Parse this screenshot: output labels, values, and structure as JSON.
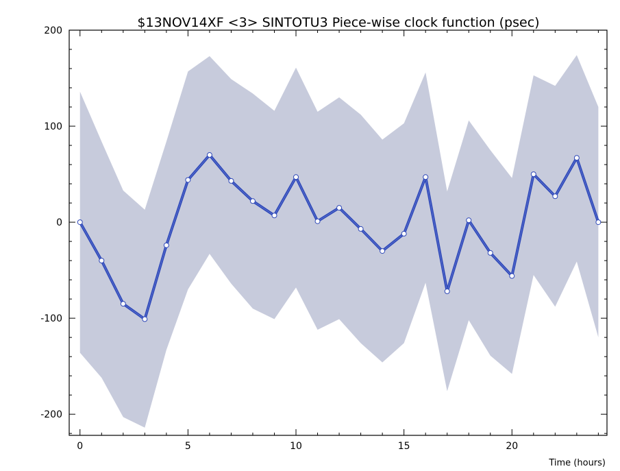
{
  "chart_data": {
    "type": "line",
    "title": "$13NOV14XF <3>  SINTOTU3  Piece-wise clock function (psec)",
    "xlabel": "Time (hours)",
    "ylabel": "",
    "xlim": [
      -0.5,
      24.4
    ],
    "ylim": [
      -222,
      200
    ],
    "xticks": [
      0,
      5,
      10,
      15,
      20
    ],
    "yticks": [
      -200,
      -100,
      0,
      100,
      200
    ],
    "x": [
      0,
      1,
      2,
      3,
      4,
      5,
      6,
      7,
      8,
      9,
      10,
      11,
      12,
      13,
      14,
      15,
      16,
      17,
      18,
      19,
      20,
      21,
      22,
      23,
      24
    ],
    "series": [
      {
        "values": [
          0,
          -40,
          -85,
          -101,
          -24,
          44,
          70,
          43,
          22,
          7,
          47,
          1,
          15,
          -7,
          -30,
          -12,
          47,
          -72,
          2,
          -32,
          -56,
          50,
          27,
          67,
          0
        ],
        "upper": [
          136,
          84,
          33,
          13,
          84,
          157,
          173,
          149,
          134,
          116,
          161,
          115,
          130,
          112,
          86,
          103,
          156,
          32,
          106,
          75,
          46,
          153,
          142,
          174,
          120
        ],
        "lower": [
          -136,
          -162,
          -203,
          -214,
          -133,
          -70,
          -33,
          -64,
          -90,
          -101,
          -68,
          -112,
          -101,
          -126,
          -146,
          -126,
          -63,
          -176,
          -102,
          -139,
          -158,
          -55,
          -88,
          -41,
          -120
        ]
      }
    ],
    "colors": {
      "band": "#c7cbdc",
      "line": "#2e48b8",
      "marker_fill": "#ffffff",
      "frame": "#000000"
    },
    "grid": false,
    "legend": "none"
  }
}
